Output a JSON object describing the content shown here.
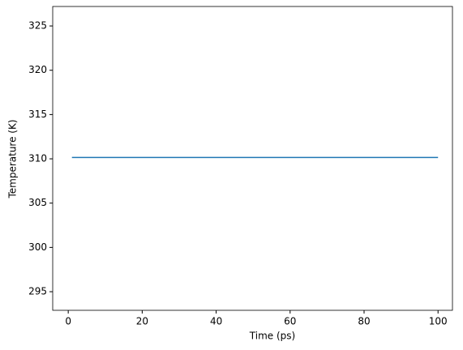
{
  "chart_data": {
    "type": "line",
    "x_label": "Time (ps)",
    "y_label": "Temperature (K)",
    "x": [
      1,
      2,
      3,
      4,
      5,
      6,
      7,
      8,
      9,
      10,
      11,
      12,
      13,
      14,
      15,
      16,
      17,
      18,
      19,
      20,
      21,
      22,
      23,
      24,
      25,
      26,
      27,
      28,
      29,
      30,
      31,
      32,
      33,
      34,
      35,
      36,
      37,
      38,
      39,
      40,
      41,
      42,
      43,
      44,
      45,
      46,
      47,
      48,
      49,
      50,
      51,
      52,
      53,
      54,
      55,
      56,
      57,
      58,
      59,
      60,
      61,
      62,
      63,
      64,
      65,
      66,
      67,
      68,
      69,
      70,
      71,
      72,
      73,
      74,
      75,
      76,
      77,
      78,
      79,
      80,
      81,
      82,
      83,
      84,
      85,
      86,
      87,
      88,
      89,
      90,
      91,
      92,
      93,
      94,
      95,
      96,
      97,
      98,
      99,
      100
    ],
    "series": [
      {
        "color": "#1f77b4",
        "values": [
          310.15,
          310.15,
          310.15,
          310.15,
          310.15,
          310.15,
          310.15,
          310.15,
          310.15,
          310.15,
          310.15,
          310.15,
          310.15,
          310.15,
          310.15,
          310.15,
          310.15,
          310.15,
          310.15,
          310.15,
          310.15,
          310.15,
          310.15,
          310.15,
          310.15,
          310.15,
          310.15,
          310.15,
          310.15,
          310.15,
          310.15,
          310.15,
          310.15,
          310.15,
          310.15,
          310.15,
          310.15,
          310.15,
          310.15,
          310.15,
          310.15,
          310.15,
          310.15,
          310.15,
          310.15,
          310.15,
          310.15,
          310.15,
          310.15,
          310.15,
          310.15,
          310.15,
          310.15,
          310.15,
          310.15,
          310.15,
          310.15,
          310.15,
          310.15,
          310.15,
          310.15,
          310.15,
          310.15,
          310.15,
          310.15,
          310.15,
          310.15,
          310.15,
          310.15,
          310.15,
          310.15,
          310.15,
          310.15,
          310.15,
          310.15,
          310.15,
          310.15,
          310.15,
          310.15,
          310.15,
          310.15,
          310.15,
          310.15,
          310.15,
          310.15,
          310.15,
          310.15,
          310.15,
          310.15,
          310.15,
          310.15,
          310.15,
          310.15,
          310.15,
          310.15,
          310.15,
          310.15,
          310.15,
          310.15,
          310.15
        ]
      }
    ],
    "xlim": [
      -4.2,
      103.9
    ],
    "xticks": [
      0,
      20,
      40,
      60,
      80,
      100
    ],
    "ylim": [
      292.9,
      327.2
    ],
    "yticks": [
      295,
      300,
      305,
      310,
      315,
      320,
      325
    ],
    "grid": false
  }
}
